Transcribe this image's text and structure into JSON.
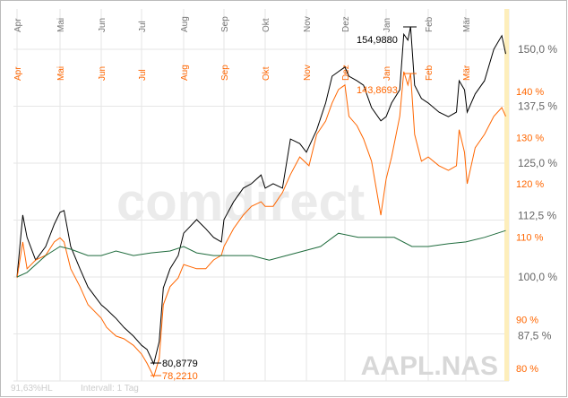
{
  "chart_data": {
    "type": "line",
    "symbol": "AAPL.NAS",
    "watermark": "comdirect",
    "footer": {
      "range_label": "91,63%HL",
      "interval_label": "Intervall: 1 Tag"
    },
    "months": [
      "Apr",
      "Mai",
      "Jun",
      "Jul",
      "Aug",
      "Sep",
      "Okt",
      "Nov",
      "Dez",
      "Jan",
      "Feb",
      "Mär"
    ],
    "left_axis": {
      "ticks": [
        "150,0 %",
        "137,5 %",
        "125,0 %",
        "112,5 %",
        "100,0 %",
        "87,5 %"
      ],
      "values": [
        150,
        137.5,
        125,
        112.5,
        100,
        87.5
      ],
      "ylim": [
        80,
        156
      ]
    },
    "right_axis": {
      "ticks": [
        "140 %",
        "130 %",
        "120 %",
        "110 %",
        "90 %",
        "80 %"
      ],
      "values": [
        140,
        130,
        120,
        110,
        90,
        80
      ],
      "color": "#ff6600"
    },
    "grid": true,
    "annotations": {
      "black_max": "154,9880",
      "black_min": "80,8779",
      "orange_max": "143,8693",
      "orange_min": "78,2210"
    },
    "series": [
      {
        "color": "#000000",
        "axis": "left",
        "points": [
          [
            "04-01",
            100.0
          ],
          [
            "04-05",
            113.6
          ],
          [
            "04-08",
            108.7
          ],
          [
            "04-14",
            103.7
          ],
          [
            "04-21",
            106.7
          ],
          [
            "04-27",
            111.6
          ],
          [
            "05-01",
            114.2
          ],
          [
            "05-04",
            114.6
          ],
          [
            "05-09",
            106.7
          ],
          [
            "05-16",
            101.8
          ],
          [
            "05-22",
            97.8
          ],
          [
            "06-01",
            93.9
          ],
          [
            "06-05",
            92.9
          ],
          [
            "06-12",
            90.9
          ],
          [
            "06-18",
            88.9
          ],
          [
            "06-25",
            87.0
          ],
          [
            "07-01",
            85.0
          ],
          [
            "07-05",
            84.1
          ],
          [
            "07-10",
            80.9
          ],
          [
            "07-14",
            85.8
          ],
          [
            "07-17",
            97.6
          ],
          [
            "07-22",
            101.8
          ],
          [
            "07-28",
            104.7
          ],
          [
            "08-01",
            109.6
          ],
          [
            "08-11",
            112.6
          ],
          [
            "08-18",
            110.6
          ],
          [
            "08-24",
            108.7
          ],
          [
            "08-30",
            107.7
          ],
          [
            "09-01",
            112.6
          ],
          [
            "09-08",
            116.5
          ],
          [
            "09-15",
            119.5
          ],
          [
            "09-21",
            120.5
          ],
          [
            "09-28",
            122.4
          ],
          [
            "10-01",
            119.5
          ],
          [
            "10-07",
            120.5
          ],
          [
            "10-14",
            119.5
          ],
          [
            "10-20",
            130.3
          ],
          [
            "10-27",
            129.3
          ],
          [
            "11-01",
            127.4
          ],
          [
            "11-09",
            132.3
          ],
          [
            "11-16",
            138.2
          ],
          [
            "11-21",
            144.1
          ],
          [
            "11-26",
            145.1
          ],
          [
            "12-01",
            146.1
          ],
          [
            "12-04",
            144.1
          ],
          [
            "12-10",
            143.1
          ],
          [
            "12-15",
            142.1
          ],
          [
            "12-21",
            137.2
          ],
          [
            "12-28",
            134.3
          ],
          [
            "01-01",
            135.2
          ],
          [
            "01-05",
            138.2
          ],
          [
            "01-11",
            141.1
          ],
          [
            "01-14",
            153.3
          ],
          [
            "01-17",
            152.0
          ],
          [
            "01-19",
            155.0
          ],
          [
            "01-22",
            142.1
          ],
          [
            "01-27",
            139.2
          ],
          [
            "02-01",
            138.2
          ],
          [
            "02-09",
            136.2
          ],
          [
            "02-16",
            135.2
          ],
          [
            "02-22",
            136.2
          ],
          [
            "02-24",
            143.1
          ],
          [
            "02-28",
            141.1
          ],
          [
            "03-02",
            136.2
          ],
          [
            "03-08",
            140.2
          ],
          [
            "03-15",
            143.1
          ],
          [
            "03-22",
            150.0
          ],
          [
            "03-28",
            153.0
          ],
          [
            "03-31",
            149.0
          ]
        ]
      },
      {
        "color": "#ff6600",
        "axis": "right",
        "points": [
          [
            "04-01",
            99.6
          ],
          [
            "04-05",
            107.4
          ],
          [
            "04-08",
            101.6
          ],
          [
            "04-14",
            103.5
          ],
          [
            "04-21",
            104.5
          ],
          [
            "04-27",
            107.4
          ],
          [
            "05-01",
            108.3
          ],
          [
            "05-04",
            107.4
          ],
          [
            "05-09",
            101.6
          ],
          [
            "05-16",
            97.7
          ],
          [
            "05-22",
            93.8
          ],
          [
            "06-01",
            90.9
          ],
          [
            "06-05",
            88.9
          ],
          [
            "06-12",
            87.0
          ],
          [
            "06-18",
            86.4
          ],
          [
            "06-25",
            85.0
          ],
          [
            "07-01",
            83.1
          ],
          [
            "07-05",
            81.1
          ],
          [
            "07-10",
            78.2
          ],
          [
            "07-14",
            82.1
          ],
          [
            "07-17",
            93.8
          ],
          [
            "07-22",
            97.7
          ],
          [
            "07-28",
            99.6
          ],
          [
            "08-01",
            102.5
          ],
          [
            "08-11",
            101.6
          ],
          [
            "08-18",
            101.6
          ],
          [
            "08-24",
            103.5
          ],
          [
            "08-30",
            104.5
          ],
          [
            "09-01",
            106.4
          ],
          [
            "09-08",
            110.3
          ],
          [
            "09-15",
            113.2
          ],
          [
            "09-21",
            115.1
          ],
          [
            "09-28",
            116.1
          ],
          [
            "10-01",
            115.1
          ],
          [
            "10-07",
            115.1
          ],
          [
            "10-14",
            118.1
          ],
          [
            "10-20",
            122.0
          ],
          [
            "10-27",
            125.8
          ],
          [
            "11-03",
            123.9
          ],
          [
            "11-09",
            130.7
          ],
          [
            "11-16",
            133.6
          ],
          [
            "11-21",
            137.5
          ],
          [
            "11-26",
            140.4
          ],
          [
            "12-01",
            141.4
          ],
          [
            "12-04",
            134.6
          ],
          [
            "12-10",
            132.6
          ],
          [
            "12-15",
            129.7
          ],
          [
            "12-21",
            124.9
          ],
          [
            "12-28",
            113.2
          ],
          [
            "01-01",
            121.0
          ],
          [
            "01-05",
            125.8
          ],
          [
            "01-11",
            134.6
          ],
          [
            "01-14",
            144.3
          ],
          [
            "01-17",
            141.4
          ],
          [
            "01-19",
            143.9
          ],
          [
            "01-22",
            130.7
          ],
          [
            "01-27",
            124.9
          ],
          [
            "02-01",
            125.8
          ],
          [
            "02-09",
            123.9
          ],
          [
            "02-16",
            122.9
          ],
          [
            "02-22",
            123.9
          ],
          [
            "02-24",
            131.7
          ],
          [
            "02-28",
            126.8
          ],
          [
            "03-02",
            120.0
          ],
          [
            "03-08",
            127.8
          ],
          [
            "03-15",
            130.7
          ],
          [
            "03-22",
            134.6
          ],
          [
            "03-28",
            136.5
          ],
          [
            "03-31",
            134.6
          ]
        ]
      },
      {
        "color": "#1e6b3c",
        "axis": "left",
        "points": [
          [
            "04-01",
            100.0
          ],
          [
            "04-08",
            101.0
          ],
          [
            "04-21",
            104.7
          ],
          [
            "05-01",
            106.7
          ],
          [
            "05-09",
            106.1
          ],
          [
            "05-22",
            104.7
          ],
          [
            "06-01",
            104.7
          ],
          [
            "06-12",
            105.7
          ],
          [
            "06-25",
            104.7
          ],
          [
            "07-08",
            105.3
          ],
          [
            "07-22",
            105.7
          ],
          [
            "08-01",
            106.7
          ],
          [
            "08-11",
            105.3
          ],
          [
            "08-24",
            104.7
          ],
          [
            "09-08",
            104.7
          ],
          [
            "09-21",
            104.7
          ],
          [
            "10-04",
            103.7
          ],
          [
            "10-17",
            104.7
          ],
          [
            "10-30",
            105.7
          ],
          [
            "11-12",
            106.7
          ],
          [
            "11-26",
            109.6
          ],
          [
            "12-11",
            108.7
          ],
          [
            "12-24",
            108.7
          ],
          [
            "01-07",
            108.7
          ],
          [
            "01-20",
            106.7
          ],
          [
            "02-01",
            106.7
          ],
          [
            "02-16",
            107.3
          ],
          [
            "03-01",
            107.7
          ],
          [
            "03-15",
            108.7
          ],
          [
            "03-31",
            110.2
          ]
        ]
      }
    ]
  }
}
